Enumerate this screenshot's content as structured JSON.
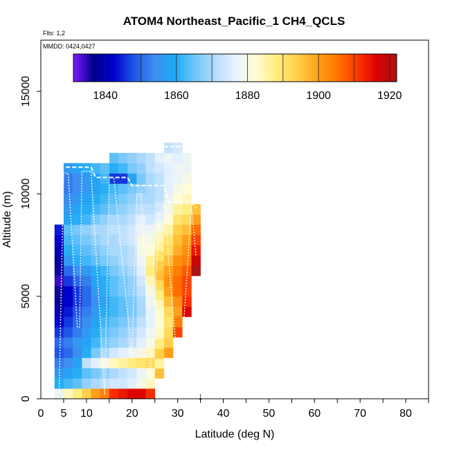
{
  "chart_data": {
    "type": "heatmap",
    "title": "ATOM4 Northeast_Pacific_1 CH4_QCLS",
    "flights_label": "Flts: 1,2",
    "dates_label": "MMDD: 0424,0427",
    "xlabel": "Latitude (deg N)",
    "ylabel": "Altitude (m)",
    "xlim": [
      0,
      85
    ],
    "ylim": [
      0,
      17500
    ],
    "x_ticks": [
      0,
      5,
      10,
      20,
      30,
      40,
      50,
      60,
      70,
      80
    ],
    "y_ticks": [
      0,
      5000,
      10000,
      15000
    ],
    "x_minor_ticks": [
      5,
      10,
      15,
      20,
      25,
      30,
      35,
      40,
      45,
      50,
      55,
      60,
      65,
      70,
      75,
      80,
      85
    ],
    "colorbar": {
      "min": 1831,
      "max": 1922,
      "ticks": [
        1840,
        1860,
        1880,
        1900,
        1920
      ],
      "colors": [
        "#7f1aff",
        "#00008b",
        "#0000cd",
        "#1f56e8",
        "#3d8ef0",
        "#1eaaf5",
        "#6ec6fa",
        "#b4dcfc",
        "#e7f2ff",
        "#fffbd6",
        "#ffef82",
        "#ffd24d",
        "#ffa51e",
        "#ff7800",
        "#ff3c00",
        "#dc0000",
        "#aa1414"
      ]
    },
    "marker": {
      "latitude": 35,
      "symbol": "↓"
    },
    "columns": [
      {
        "lat": 4,
        "alt_min": 0,
        "alt_max": 8500,
        "profile": [
          1878,
          1860,
          1856,
          1852,
          1848,
          1850,
          1846,
          1842,
          1840,
          1838,
          1836,
          1834,
          1836,
          1838,
          1840,
          1842,
          1844
        ]
      },
      {
        "lat": 6,
        "alt_min": 0,
        "alt_max": 11500,
        "profile": [
          1884,
          1862,
          1858,
          1854,
          1850,
          1852,
          1848,
          1846,
          1844,
          1842,
          1842,
          1846,
          1850,
          1856,
          1860,
          1862,
          1864,
          1858,
          1856,
          1854,
          1852,
          1852,
          1856
        ]
      },
      {
        "lat": 8,
        "alt_min": 0,
        "alt_max": 11500,
        "profile": [
          1888,
          1864,
          1860,
          1858,
          1854,
          1856,
          1852,
          1850,
          1848,
          1846,
          1846,
          1850,
          1854,
          1860,
          1862,
          1864,
          1866,
          1860,
          1858,
          1856,
          1854,
          1854,
          1858
        ]
      },
      {
        "lat": 10,
        "alt_min": 0,
        "alt_max": 11500,
        "profile": [
          1894,
          1868,
          1864,
          1872,
          1860,
          1858,
          1856,
          1854,
          1852,
          1850,
          1850,
          1852,
          1856,
          1862,
          1864,
          1866,
          1868,
          1862,
          1860,
          1858,
          1856,
          1856,
          1860
        ]
      },
      {
        "lat": 12,
        "alt_min": 0,
        "alt_max": 11500,
        "profile": [
          1900,
          1870,
          1866,
          1876,
          1866,
          1862,
          1860,
          1858,
          1856,
          1854,
          1856,
          1858,
          1860,
          1864,
          1866,
          1868,
          1870,
          1866,
          1862,
          1860,
          1858,
          1858,
          1862
        ]
      },
      {
        "lat": 14,
        "alt_min": 0,
        "alt_max": 11500,
        "profile": [
          1904,
          1872,
          1868,
          1880,
          1870,
          1866,
          1864,
          1862,
          1860,
          1858,
          1860,
          1860,
          1862,
          1866,
          1868,
          1870,
          1870,
          1868,
          1864,
          1862,
          1860,
          1862,
          1864
        ]
      },
      {
        "lat": 16,
        "alt_min": 0,
        "alt_max": 12000,
        "profile": [
          1912,
          1874,
          1870,
          1884,
          1874,
          1868,
          1866,
          1864,
          1862,
          1862,
          1864,
          1864,
          1866,
          1868,
          1870,
          1870,
          1872,
          1870,
          1866,
          1864,
          1862,
          1846,
          1860,
          1864
        ]
      },
      {
        "lat": 18,
        "alt_min": 0,
        "alt_max": 12000,
        "profile": [
          1914,
          1874,
          1872,
          1886,
          1876,
          1870,
          1868,
          1866,
          1864,
          1864,
          1866,
          1866,
          1868,
          1870,
          1870,
          1872,
          1872,
          1870,
          1868,
          1866,
          1864,
          1846,
          1862,
          1866
        ]
      },
      {
        "lat": 20,
        "alt_min": 0,
        "alt_max": 12000,
        "profile": [
          1916,
          1876,
          1874,
          1888,
          1878,
          1872,
          1870,
          1868,
          1866,
          1866,
          1868,
          1868,
          1870,
          1872,
          1872,
          1874,
          1874,
          1872,
          1870,
          1868,
          1866,
          1858,
          1866,
          1868
        ]
      },
      {
        "lat": 22,
        "alt_min": 0,
        "alt_max": 12000,
        "profile": [
          1916,
          1880,
          1878,
          1890,
          1880,
          1876,
          1874,
          1872,
          1870,
          1870,
          1872,
          1874,
          1876,
          1878,
          1880,
          1880,
          1878,
          1876,
          1872,
          1870,
          1868,
          1866,
          1868,
          1870
        ]
      },
      {
        "lat": 24,
        "alt_min": 0,
        "alt_max": 12000,
        "profile": [
          1912,
          1884,
          1882,
          1892,
          1884,
          1880,
          1878,
          1876,
          1876,
          1878,
          1880,
          1884,
          1888,
          1886,
          1882,
          1880,
          1878,
          1874,
          1872,
          1870,
          1870,
          1870,
          1872,
          1872
        ]
      },
      {
        "lat": 26,
        "alt_min": 1000,
        "alt_max": 12000,
        "profile": [
          1896,
          1886,
          1894,
          1888,
          1884,
          1882,
          1882,
          1884,
          1888,
          1892,
          1896,
          1894,
          1890,
          1886,
          1884,
          1880,
          1876,
          1874,
          1872,
          1872,
          1872,
          1874,
          1876
        ]
      },
      {
        "lat": 28,
        "alt_min": 2000,
        "alt_max": 12500,
        "profile": [
          1900,
          1894,
          1892,
          1890,
          1892,
          1896,
          1900,
          1902,
          1900,
          1896,
          1892,
          1890,
          1886,
          1882,
          1880,
          1878,
          1876,
          1876,
          1876,
          1878,
          1872
        ]
      },
      {
        "lat": 30,
        "alt_min": 3000,
        "alt_max": 12500,
        "profile": [
          1910,
          1904,
          1900,
          1902,
          1906,
          1906,
          1904,
          1902,
          1898,
          1896,
          1894,
          1890,
          1886,
          1882,
          1880,
          1878,
          1878,
          1876,
          1874
        ]
      },
      {
        "lat": 32,
        "alt_min": 4000,
        "alt_max": 12000,
        "profile": [
          1916,
          1912,
          1910,
          1910,
          1908,
          1904,
          1902,
          1900,
          1896,
          1892,
          1888,
          1884,
          1882,
          1880,
          1878,
          1878
        ]
      },
      {
        "lat": 34,
        "alt_min": 6000,
        "alt_max": 9500,
        "profile": [
          1922,
          1918,
          1914,
          1910,
          1906,
          1900,
          1896
        ]
      }
    ],
    "flight_track_color": "#ffffff"
  }
}
